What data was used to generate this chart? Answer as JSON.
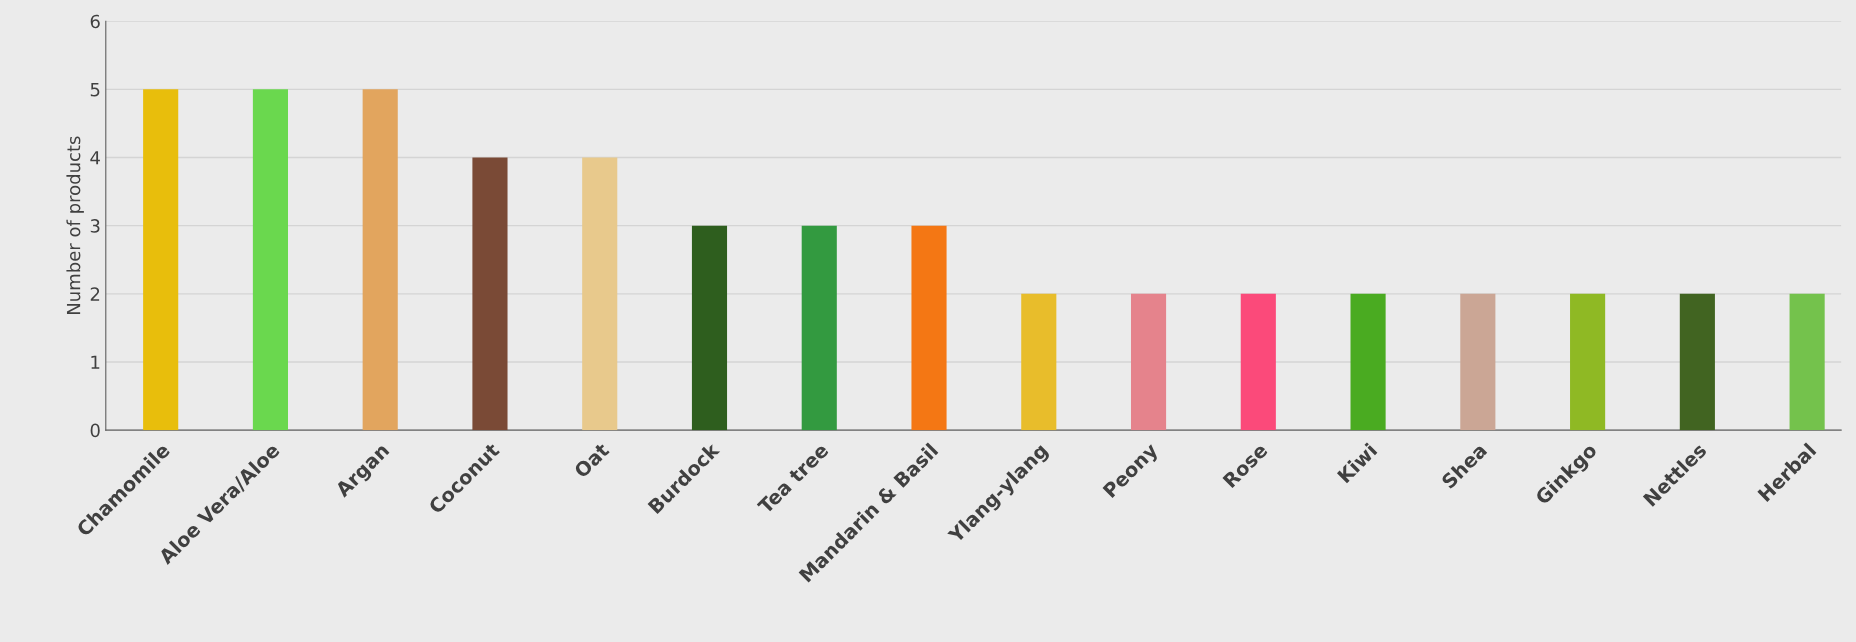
{
  "chart_data": {
    "type": "bar",
    "ylabel": "Number of products",
    "categories": [
      "Chamomile",
      "Aloe Vera/Aloe",
      "Argan",
      "Coconut",
      "Oat",
      "Burdock",
      "Tea tree",
      "Mandarin & Basil",
      "Ylang-ylang",
      "Peony",
      "Rose",
      "Kiwi",
      "Shea",
      "Ginkgo",
      "Nettles",
      "Herbal"
    ],
    "values": [
      5,
      5,
      5,
      4,
      4,
      3,
      3,
      3,
      2,
      2,
      2,
      2,
      2,
      2,
      2,
      2
    ],
    "colors": [
      "#e8be0c",
      "#6ad84e",
      "#e2a55e",
      "#7a4a36",
      "#e8c98c",
      "#2e5e1e",
      "#339a40",
      "#f47714",
      "#e8bd2b",
      "#e5838c",
      "#fb4a7a",
      "#4aab21",
      "#cba695",
      "#8fb924",
      "#416421",
      "#74c24c"
    ],
    "ylim": [
      0,
      6
    ],
    "yticks": [
      0,
      1,
      2,
      3,
      4,
      5,
      6
    ],
    "grid": "y",
    "legend": false
  }
}
